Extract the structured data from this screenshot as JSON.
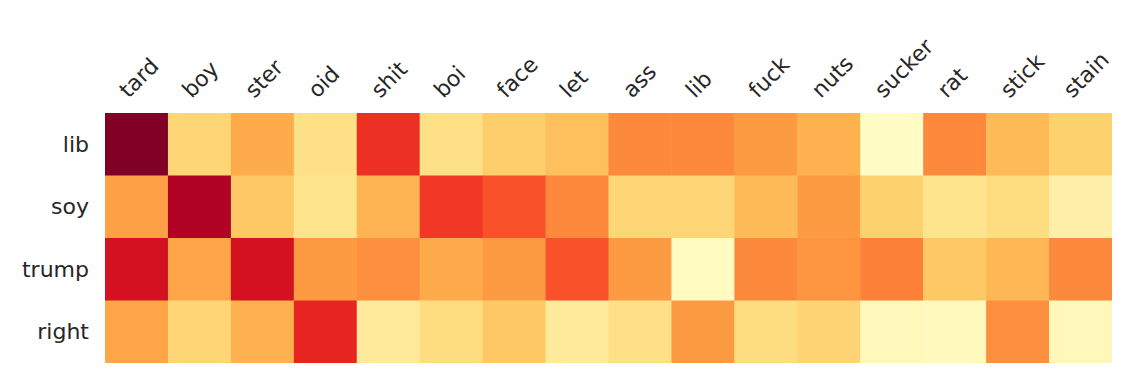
{
  "chart_data": {
    "type": "heatmap",
    "x": [
      "tard",
      "boy",
      "ster",
      "oid",
      "shit",
      "boi",
      "face",
      "let",
      "ass",
      "lib",
      "fuck",
      "nuts",
      "sucker",
      "rat",
      "stick",
      "stain"
    ],
    "y": [
      "lib",
      "soy",
      "trump",
      "right"
    ],
    "values": [
      [
        1.0,
        0.25,
        0.4,
        0.2,
        0.7,
        0.2,
        0.28,
        0.33,
        0.5,
        0.5,
        0.45,
        0.38,
        0.02,
        0.5,
        0.35,
        0.27
      ],
      [
        0.43,
        0.9,
        0.3,
        0.18,
        0.37,
        0.68,
        0.62,
        0.5,
        0.25,
        0.25,
        0.35,
        0.45,
        0.27,
        0.18,
        0.22,
        0.1
      ],
      [
        0.8,
        0.42,
        0.8,
        0.45,
        0.48,
        0.4,
        0.45,
        0.62,
        0.45,
        0.03,
        0.5,
        0.47,
        0.52,
        0.3,
        0.36,
        0.5
      ],
      [
        0.42,
        0.25,
        0.38,
        0.73,
        0.14,
        0.22,
        0.3,
        0.14,
        0.2,
        0.45,
        0.22,
        0.26,
        0.05,
        0.04,
        0.48,
        0.05
      ]
    ],
    "zlim": [
      0,
      1
    ],
    "color": "YlOrRd"
  }
}
